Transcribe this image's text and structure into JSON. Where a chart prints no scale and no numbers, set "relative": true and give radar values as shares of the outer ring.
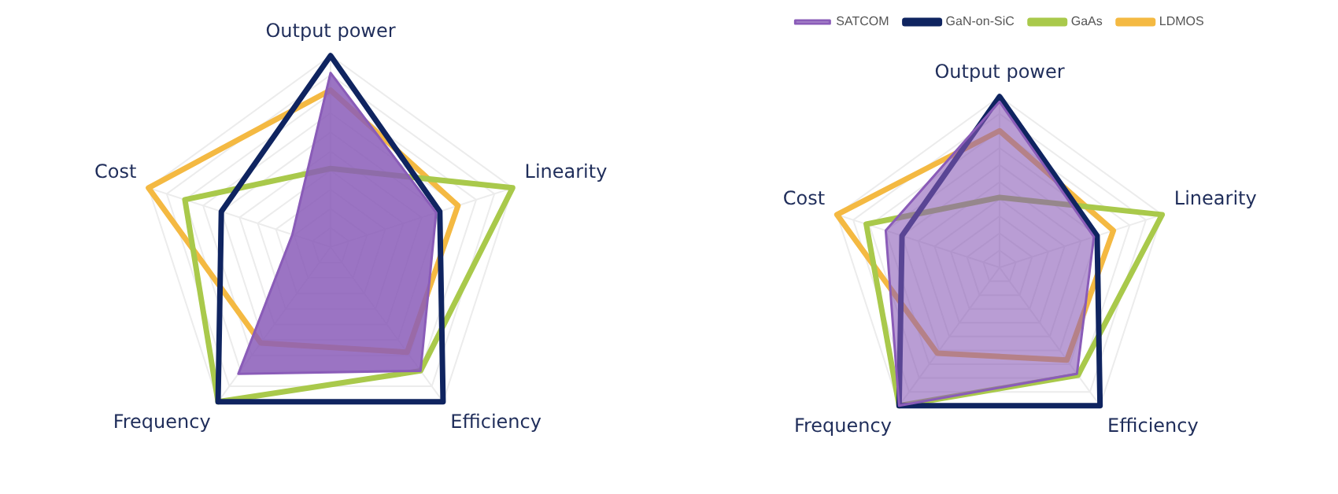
{
  "chart_data": [
    {
      "type": "radar",
      "relative": true,
      "grid": true,
      "legend": false,
      "marker": "none",
      "categories": [
        "Output power",
        "Linearity",
        "Efficiency",
        "Frequency",
        "Cost"
      ],
      "series": [
        {
          "type": "area",
          "color": "#8a5cb8",
          "values": [
            0.91,
            0.58,
            0.8,
            0.82,
            0.21
          ]
        },
        {
          "color": "#0f2460",
          "values": [
            1,
            0.6,
            1,
            1,
            0.6
          ]
        },
        {
          "color": "#a9c94b",
          "values": [
            0.41,
            1,
            0.8,
            1,
            0.8
          ]
        },
        {
          "color": "#f4b942",
          "values": [
            0.82,
            0.7,
            0.68,
            0.62,
            1
          ]
        }
      ]
    },
    {
      "type": "radar",
      "relative": true,
      "grid": true,
      "legend": "top",
      "marker": "none",
      "categories": [
        "Output power",
        "Linearity",
        "Efficiency",
        "Frequency",
        "Cost"
      ],
      "series": [
        {
          "type": "area",
          "name": "SATCOM",
          "color": "#8a5cb8",
          "values": [
            0.97,
            0.58,
            0.77,
            1,
            0.7
          ]
        },
        {
          "name": "GaN-on-SiC",
          "color": "#0f2460",
          "values": [
            1,
            0.6,
            1,
            1,
            0.6
          ]
        },
        {
          "name": "GaAs",
          "color": "#a9c94b",
          "values": [
            0.41,
            1,
            0.78,
            1,
            0.82
          ]
        },
        {
          "name": "LDMOS",
          "color": "#f4b942",
          "values": [
            0.8,
            0.7,
            0.67,
            0.62,
            1
          ]
        }
      ]
    }
  ]
}
